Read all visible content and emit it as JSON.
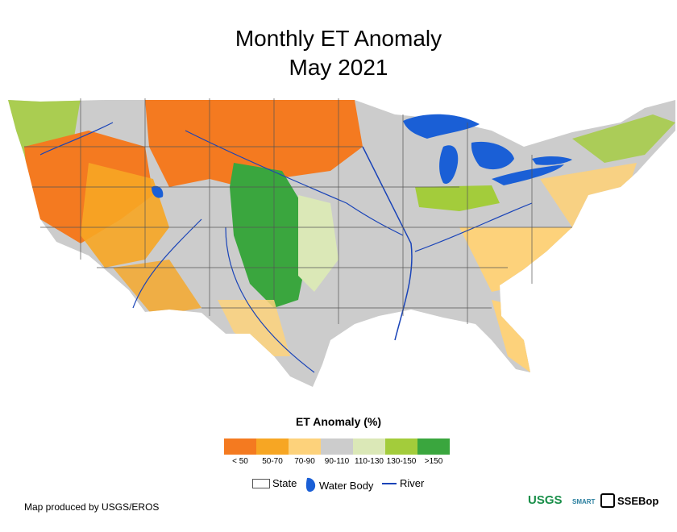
{
  "title": {
    "line1": "Monthly ET Anomaly",
    "line2": "May 2021"
  },
  "legend": {
    "title": "ET Anomaly (%)",
    "classes": [
      {
        "label": "< 50",
        "color": "#f47a20"
      },
      {
        "label": "50-70",
        "color": "#f7a623"
      },
      {
        "label": "70-90",
        "color": "#fdd27b"
      },
      {
        "label": "90-110",
        "color": "#cccccc"
      },
      {
        "label": "110-130",
        "color": "#dbe8b7"
      },
      {
        "label": "130-150",
        "color": "#a3cc3b"
      },
      {
        "label": ">150",
        "color": "#3aa63e"
      }
    ]
  },
  "features": {
    "state": "State",
    "water_body": "Water Body",
    "river": "River"
  },
  "colors": {
    "water": "#1a5fd6",
    "state_border": "#555555",
    "river": "#1a44b8"
  },
  "credit": "Map produced by USGS/EROS",
  "logos": {
    "usgs": "USGS",
    "smart": "SMART",
    "ssebop": "SSEBop"
  }
}
